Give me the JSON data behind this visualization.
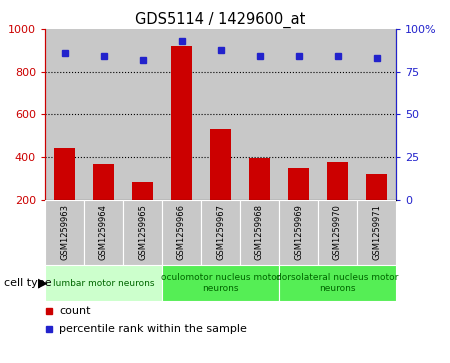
{
  "title": "GDS5114 / 1429600_at",
  "samples": [
    "GSM1259963",
    "GSM1259964",
    "GSM1259965",
    "GSM1259966",
    "GSM1259967",
    "GSM1259968",
    "GSM1259969",
    "GSM1259970",
    "GSM1259971"
  ],
  "counts": [
    440,
    365,
    283,
    920,
    530,
    397,
    348,
    375,
    320
  ],
  "percentiles": [
    86,
    84,
    82,
    93,
    88,
    84,
    84,
    84,
    83
  ],
  "ylim_left": [
    200,
    1000
  ],
  "ylim_right": [
    0,
    100
  ],
  "yticks_left": [
    200,
    400,
    600,
    800,
    1000
  ],
  "yticks_right": [
    0,
    25,
    50,
    75,
    100
  ],
  "bar_color": "#cc0000",
  "dot_color": "#2222cc",
  "groups": [
    {
      "label": "lumbar motor neurons",
      "start": 0,
      "end": 3,
      "color": "#ccffcc"
    },
    {
      "label": "oculomotor nucleus motor\nneurons",
      "start": 3,
      "end": 6,
      "color": "#55ee55"
    },
    {
      "label": "dorsolateral nucleus motor\nneurons",
      "start": 6,
      "end": 9,
      "color": "#55ee55"
    }
  ],
  "cell_type_label": "cell type",
  "legend_count_label": "count",
  "legend_percentile_label": "percentile rank within the sample",
  "bar_width": 0.55,
  "col_bg_color": "#c8c8c8",
  "col_border_color": "#ffffff"
}
